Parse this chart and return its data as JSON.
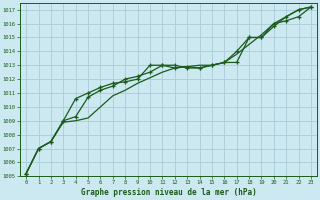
{
  "title": "Graphe pression niveau de la mer (hPa)",
  "bg_color": "#cce8f0",
  "grid_color": "#aaccd8",
  "line_color": "#1a5c1a",
  "xlim": [
    -0.5,
    23.5
  ],
  "ylim": [
    1005,
    1017.5
  ],
  "xticks": [
    0,
    1,
    2,
    3,
    4,
    5,
    6,
    7,
    8,
    9,
    10,
    11,
    12,
    13,
    14,
    15,
    16,
    17,
    18,
    19,
    20,
    21,
    22,
    23
  ],
  "yticks": [
    1005,
    1006,
    1007,
    1008,
    1009,
    1010,
    1011,
    1012,
    1013,
    1014,
    1015,
    1016,
    1017
  ],
  "series1_x": [
    0,
    1,
    2,
    3,
    4,
    5,
    6,
    7,
    8,
    9,
    10,
    11,
    12,
    13,
    14,
    15,
    16,
    17,
    18,
    19,
    20,
    21,
    22,
    23
  ],
  "series1_y": [
    1005.2,
    1007.0,
    1007.5,
    1008.9,
    1009.0,
    1009.2,
    1010.0,
    1010.8,
    1011.2,
    1011.7,
    1012.1,
    1012.5,
    1012.8,
    1012.9,
    1013.0,
    1013.0,
    1013.2,
    1013.8,
    1014.5,
    1015.2,
    1016.0,
    1016.5,
    1017.0,
    1017.2
  ],
  "series2_x": [
    0,
    1,
    2,
    3,
    4,
    5,
    6,
    7,
    8,
    9,
    10,
    11,
    12,
    13,
    14,
    15,
    16,
    17,
    18,
    19,
    20,
    21,
    22,
    23
  ],
  "series2_y": [
    1005.2,
    1007.0,
    1007.5,
    1009.0,
    1010.6,
    1011.0,
    1011.4,
    1011.7,
    1011.8,
    1012.0,
    1013.0,
    1013.0,
    1012.8,
    1012.9,
    1012.8,
    1013.0,
    1013.2,
    1013.2,
    1015.0,
    1015.0,
    1016.0,
    1016.2,
    1016.5,
    1017.2
  ],
  "series3_x": [
    0,
    1,
    2,
    3,
    4,
    5,
    6,
    7,
    8,
    9,
    10,
    11,
    12,
    13,
    14,
    15,
    16,
    17,
    18,
    19,
    20,
    21,
    22,
    23
  ],
  "series3_y": [
    1005.2,
    1007.0,
    1007.5,
    1009.0,
    1009.3,
    1010.7,
    1011.2,
    1011.5,
    1012.0,
    1012.2,
    1012.5,
    1013.0,
    1013.0,
    1012.8,
    1012.8,
    1013.0,
    1013.2,
    1014.0,
    1015.0,
    1015.0,
    1015.8,
    1016.5,
    1017.0,
    1017.2
  ]
}
